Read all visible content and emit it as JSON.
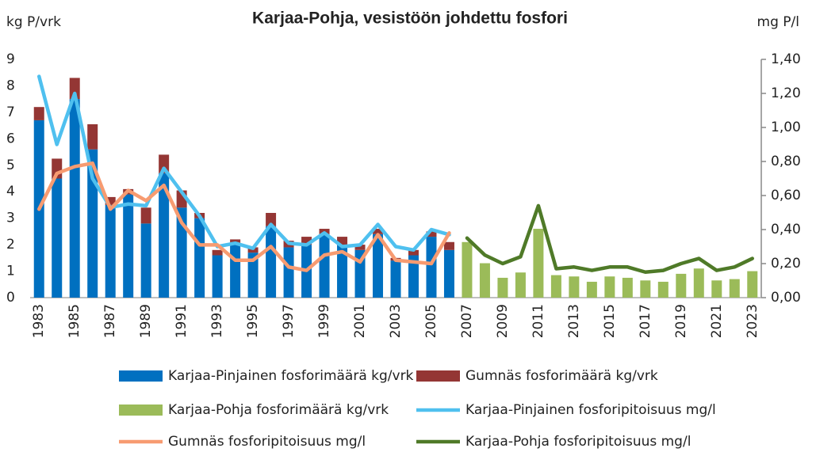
{
  "chart_data": {
    "type": "bar",
    "stacked": true,
    "title": "Karjaa-Pohja, vesistöön johdettu fosfori",
    "y_label": "kg P/vrk",
    "y2_label": "mg P/l",
    "categories": [
      "1983",
      null,
      "1985",
      null,
      "1987",
      null,
      "1989",
      null,
      "1991",
      null,
      "1993",
      null,
      "1995",
      null,
      "1997",
      null,
      "1999",
      null,
      "2001",
      null,
      "2003",
      null,
      "2005",
      null,
      "2007",
      null,
      "2009",
      null,
      "2011",
      null,
      "2013",
      null,
      "2015",
      null,
      "2017",
      null,
      "2019",
      null,
      "2021",
      null,
      "2023"
    ],
    "ylim": [
      0,
      9
    ],
    "yticks": [
      0,
      1,
      2,
      3,
      4,
      5,
      6,
      7,
      8,
      9
    ],
    "y2lim": [
      0,
      1.4
    ],
    "y2ticks": [
      {
        "value": 0,
        "label": "0,00"
      },
      {
        "value": 0.2,
        "label": "0,20"
      },
      {
        "value": 0.4,
        "label": "0,40"
      },
      {
        "value": 0.6,
        "label": "0,60"
      },
      {
        "value": 0.8,
        "label": "0,80"
      },
      {
        "value": 1.0,
        "label": "1,00"
      },
      {
        "value": 1.2,
        "label": "1,20"
      },
      {
        "value": 1.4,
        "label": "1,40"
      }
    ],
    "grid": false,
    "legend": "bottom",
    "series": [
      {
        "name": "Karjaa-Pinjainen fosforimäärä kg/vrk",
        "type": "bar",
        "color": "#0070c0",
        "values": [
          6.7,
          4.5,
          7.5,
          5.6,
          3.5,
          3.9,
          2.8,
          4.7,
          3.4,
          3.0,
          1.6,
          2.0,
          1.7,
          2.7,
          1.9,
          2.0,
          2.4,
          2.0,
          1.8,
          2.4,
          1.4,
          1.6,
          2.3,
          1.8,
          null,
          null,
          null,
          null,
          null,
          null,
          null,
          null,
          null,
          null,
          null,
          null,
          null,
          null,
          null,
          null,
          null
        ]
      },
      {
        "name": "Gumnäs fosforimäärä kg/vrk",
        "type": "bar",
        "color": "#943634",
        "values": [
          0.5,
          0.75,
          0.8,
          0.95,
          0.3,
          0.2,
          0.6,
          0.7,
          0.65,
          0.2,
          0.2,
          0.2,
          0.2,
          0.5,
          0.25,
          0.3,
          0.2,
          0.3,
          0.2,
          0.2,
          0.1,
          0.2,
          0.2,
          0.3,
          null,
          null,
          null,
          null,
          null,
          null,
          null,
          null,
          null,
          null,
          null,
          null,
          null,
          null,
          null,
          null,
          null
        ]
      },
      {
        "name": "Karjaa-Pohja fosforimäärä kg/vrk",
        "type": "bar",
        "color": "#9bbb59",
        "values": [
          null,
          null,
          null,
          null,
          null,
          null,
          null,
          null,
          null,
          null,
          null,
          null,
          null,
          null,
          null,
          null,
          null,
          null,
          null,
          null,
          null,
          null,
          null,
          null,
          2.1,
          1.3,
          0.75,
          0.95,
          2.6,
          0.85,
          0.8,
          0.6,
          0.8,
          0.75,
          0.65,
          0.6,
          0.9,
          1.1,
          0.65,
          0.7,
          1.0
        ]
      },
      {
        "name": "Karjaa-Pinjainen fosforipitoisuus mg/l",
        "type": "line",
        "axis": "y2",
        "color": "#4fc0ef",
        "values": [
          1.3,
          0.9,
          1.2,
          0.7,
          0.53,
          0.55,
          0.54,
          0.76,
          0.62,
          0.48,
          0.3,
          0.32,
          0.29,
          0.43,
          0.32,
          0.31,
          0.38,
          0.3,
          0.31,
          0.43,
          0.3,
          0.28,
          0.4,
          0.37,
          null,
          null,
          null,
          null,
          null,
          null,
          null,
          null,
          null,
          null,
          null,
          null,
          null,
          null,
          null,
          null,
          null
        ]
      },
      {
        "name": "Gumnäs fosforipitoisuus mg/l",
        "type": "line",
        "axis": "y2",
        "color": "#f79b71",
        "values": [
          0.52,
          0.73,
          0.77,
          0.79,
          0.52,
          0.63,
          0.57,
          0.66,
          0.44,
          0.31,
          0.31,
          0.22,
          0.22,
          0.3,
          0.18,
          0.16,
          0.25,
          0.27,
          0.21,
          0.37,
          0.22,
          0.21,
          0.2,
          0.38,
          null,
          null,
          null,
          null,
          null,
          null,
          null,
          null,
          null,
          null,
          null,
          null,
          null,
          null,
          null,
          null,
          null
        ]
      },
      {
        "name": "Karjaa-Pohja fosforipitoisuus mg/l",
        "type": "line",
        "axis": "y2",
        "color": "#4f7a28",
        "values": [
          null,
          null,
          null,
          null,
          null,
          null,
          null,
          null,
          null,
          null,
          null,
          null,
          null,
          null,
          null,
          null,
          null,
          null,
          null,
          null,
          null,
          null,
          null,
          null,
          0.35,
          0.25,
          0.2,
          0.24,
          0.54,
          0.17,
          0.18,
          0.16,
          0.18,
          0.18,
          0.15,
          0.16,
          0.2,
          0.23,
          0.16,
          0.18,
          0.23
        ]
      }
    ]
  }
}
